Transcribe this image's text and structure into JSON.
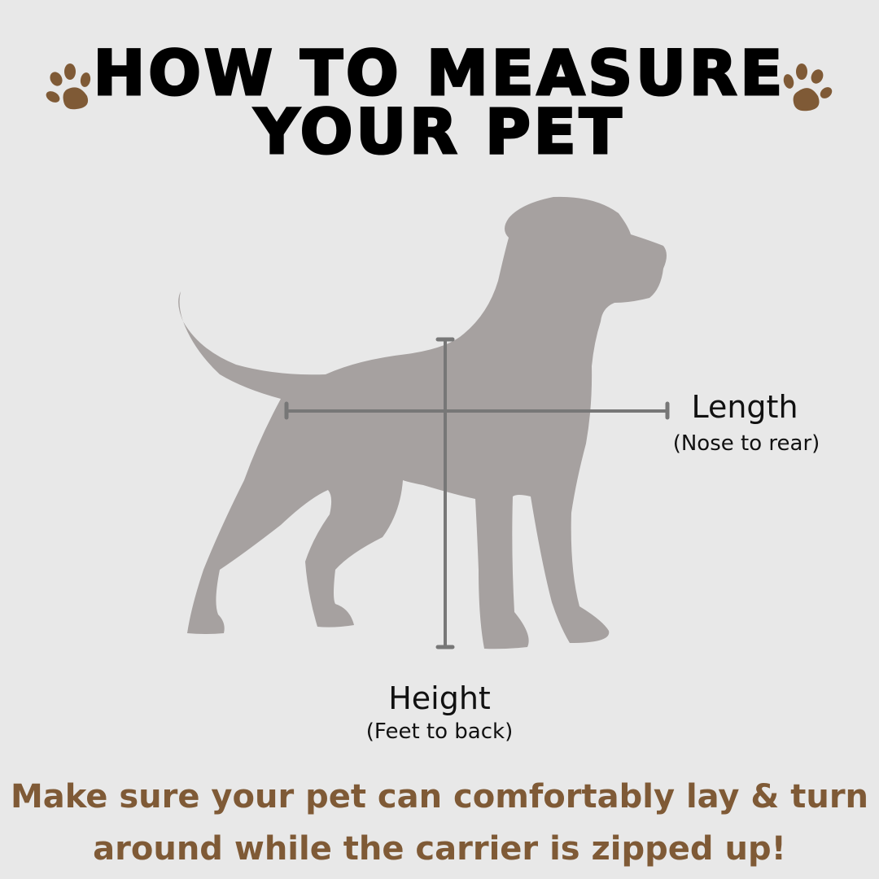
{
  "title": {
    "line1": "HOW TO MEASURE",
    "line2": "YOUR PET"
  },
  "measurements": {
    "length": {
      "label": "Length",
      "sub": "(Nose to rear)"
    },
    "height": {
      "label": "Height",
      "sub": "(Feet to back)"
    }
  },
  "note": {
    "line1": "Make sure your pet can comfortably lay & turn",
    "line2": "around while the carrier is zipped up!"
  },
  "icons": [
    "paw-print-icon",
    "dog-silhouette"
  ],
  "colors": {
    "background": "#e8e8e8",
    "dog": "#a6a1a0",
    "measure_line": "#777777",
    "accent": "#7f5a36"
  }
}
